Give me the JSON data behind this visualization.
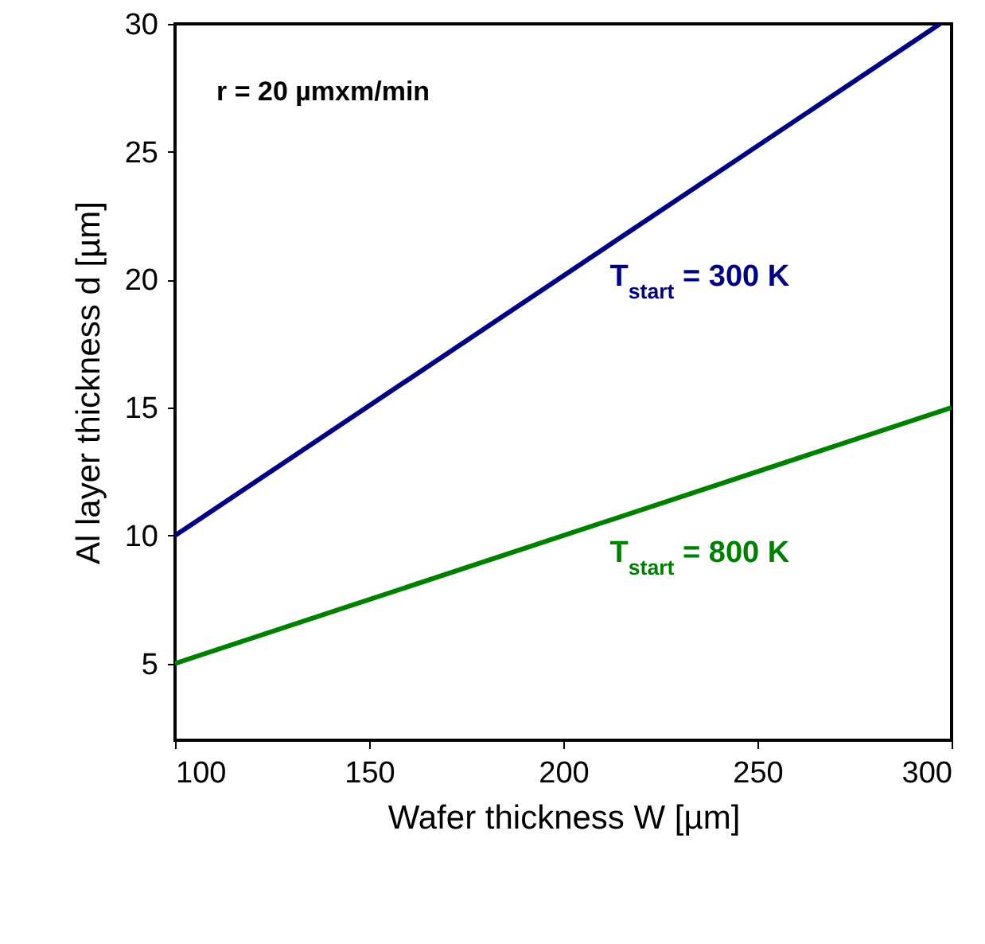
{
  "chart_data": {
    "type": "line",
    "xlabel": "Wafer thickness W [µm]",
    "ylabel": "Al layer thickness d [µm]",
    "annotations": [
      "r = 20 µmxm/min"
    ],
    "series": [
      {
        "name": "T$_{start}$ = 300 K",
        "color": "#000080",
        "x": [
          100,
          297
        ],
        "values": [
          10,
          30
        ]
      },
      {
        "name": "T$_{start}$ =  800 K",
        "color": "#008000",
        "x": [
          100,
          300
        ],
        "values": [
          5,
          15
        ]
      }
    ],
    "xlim": [
      100,
      300
    ],
    "xticks": [
      100,
      150,
      200,
      250,
      300
    ],
    "ylim": [
      2,
      30
    ],
    "yticks": [
      5,
      10,
      15,
      20,
      25,
      30
    ],
    "grid": false,
    "marker": "none",
    "line_style": "solid"
  }
}
